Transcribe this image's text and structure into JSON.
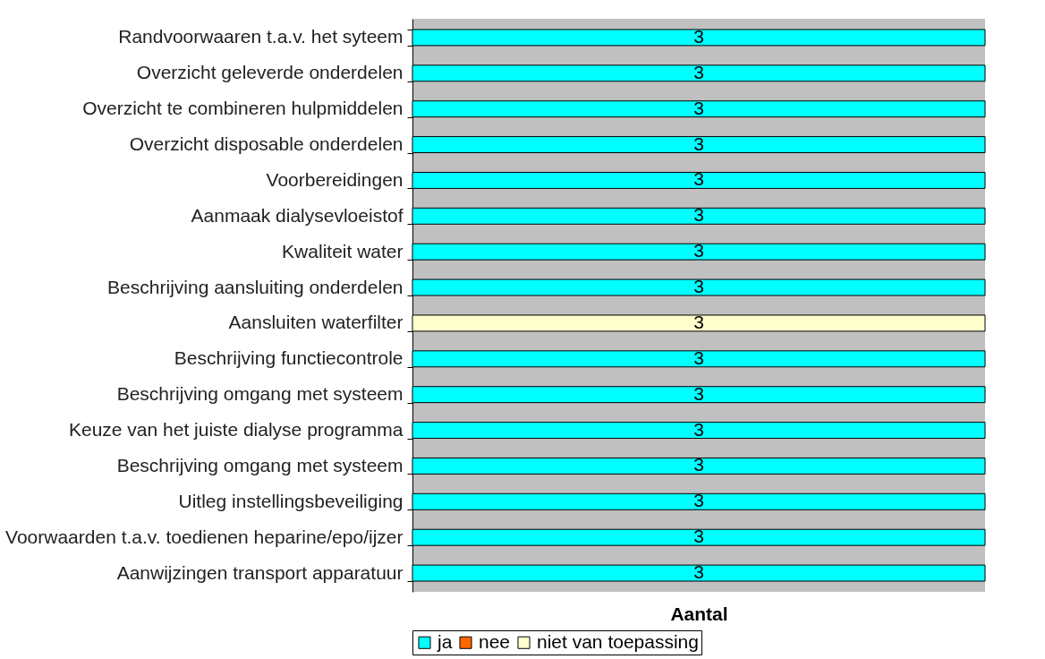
{
  "chart_data": {
    "type": "bar",
    "orientation": "horizontal",
    "stacked": true,
    "xlabel": "Aantal",
    "categories": [
      "Randvoorwaaren t.a.v. het syteem",
      "Overzicht geleverde onderdelen",
      "Overzicht te combineren hulpmiddelen",
      "Overzicht disposable onderdelen",
      "Voorbereidingen",
      "Aanmaak dialysevloeistof",
      "Kwaliteit water",
      "Beschrijving aansluiting onderdelen ",
      "Aansluiten waterfilter",
      "Beschrijving functiecontrole",
      "Beschrijving omgang met systeem",
      "Keuze van het juiste dialyse programma",
      "Beschrijving omgang met systeem",
      "Uitleg instellingsbeveiliging",
      "Voorwaarden t.a.v. toedienen heparine/epo/ijzer",
      "Aanwijzingen transport apparatuur"
    ],
    "series": [
      {
        "name": "ja",
        "color": "#00ffff",
        "values": [
          3,
          3,
          3,
          3,
          3,
          3,
          3,
          3,
          null,
          3,
          3,
          3,
          3,
          3,
          3,
          3
        ]
      },
      {
        "name": "nee",
        "color": "#ff6600",
        "values": [
          null,
          null,
          null,
          null,
          null,
          null,
          null,
          null,
          null,
          null,
          null,
          null,
          null,
          null,
          null,
          null
        ]
      },
      {
        "name": "niet van toepassing",
        "color": "#ffffcc",
        "values": [
          null,
          null,
          null,
          null,
          null,
          null,
          null,
          null,
          3,
          null,
          null,
          null,
          null,
          null,
          null,
          null
        ]
      }
    ],
    "data_labels": true,
    "tick_labels": "y",
    "grid": false,
    "legend": "bottom"
  }
}
